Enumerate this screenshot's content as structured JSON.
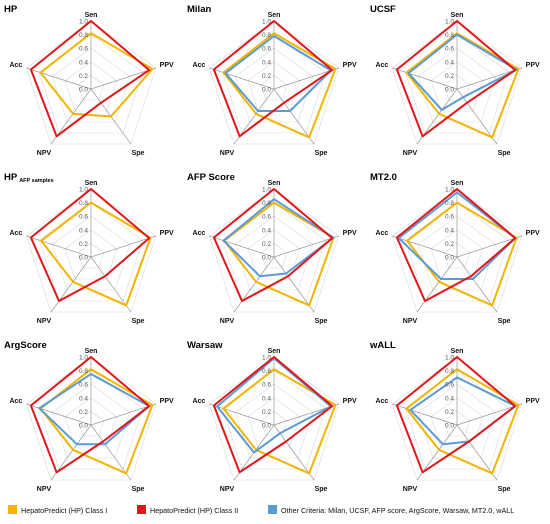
{
  "colors": {
    "class_i": "#F2B400",
    "class_ii": "#E0161B",
    "other": "#5B9BD5",
    "grid": "#d9d9d9",
    "spoke": "#999999"
  },
  "legend": [
    {
      "label": "HepatoPredict (HP) Class I",
      "color": "#F2B400"
    },
    {
      "label": "HepatoPredict (HP) Class II",
      "color": "#E0161B"
    },
    {
      "label": "Other Criteria: Milan, UCSF, AFP score, ArgScore, Warsaw, MT2.0, wALL",
      "color": "#5B9BD5"
    }
  ],
  "chart_data": [
    {
      "type": "radar",
      "title": "HP",
      "subtitle": "",
      "axes": [
        "Sen",
        "PPV",
        "Spe",
        "NPV",
        "Acc"
      ],
      "ticks": [
        "0.0",
        "0.2",
        "0.4",
        "0.6",
        "0.8",
        "1.0"
      ],
      "rlim": [
        0,
        1
      ],
      "series": [
        {
          "name": "HepatoPredict (HP) Class I",
          "values": [
            0.82,
            0.95,
            0.5,
            0.45,
            0.78
          ]
        },
        {
          "name": "HepatoPredict (HP) Class II",
          "values": [
            1.0,
            0.9,
            0.25,
            0.86,
            0.93
          ]
        }
      ]
    },
    {
      "type": "radar",
      "title": "Milan",
      "subtitle": "",
      "axes": [
        "Sen",
        "PPV",
        "Spe",
        "NPV",
        "Acc"
      ],
      "ticks": [
        "0.0",
        "0.2",
        "0.4",
        "0.6",
        "0.8",
        "1.0"
      ],
      "rlim": [
        0,
        1
      ],
      "series": [
        {
          "name": "HepatoPredict (HP) Class I",
          "values": [
            0.82,
            0.95,
            0.88,
            0.45,
            0.78
          ]
        },
        {
          "name": "HepatoPredict (HP) Class II",
          "values": [
            1.0,
            0.9,
            0.25,
            0.86,
            0.93
          ]
        },
        {
          "name": "Milan",
          "values": [
            0.78,
            0.88,
            0.4,
            0.4,
            0.75
          ]
        }
      ]
    },
    {
      "type": "radar",
      "title": "UCSF",
      "subtitle": "",
      "axes": [
        "Sen",
        "PPV",
        "Spe",
        "NPV",
        "Acc"
      ],
      "ticks": [
        "0.0",
        "0.2",
        "0.4",
        "0.6",
        "0.8",
        "1.0"
      ],
      "rlim": [
        0,
        1
      ],
      "series": [
        {
          "name": "HepatoPredict (HP) Class I",
          "values": [
            0.82,
            0.95,
            0.88,
            0.45,
            0.78
          ]
        },
        {
          "name": "HepatoPredict (HP) Class II",
          "values": [
            1.0,
            0.9,
            0.25,
            0.86,
            0.93
          ]
        },
        {
          "name": "UCSF",
          "values": [
            0.8,
            0.92,
            0.15,
            0.38,
            0.75
          ]
        }
      ]
    },
    {
      "type": "radar",
      "title": "HP",
      "subtitle": "AFP samples",
      "axes": [
        "Sen",
        "PPV",
        "Spe",
        "NPV",
        "Acc"
      ],
      "ticks": [
        "0.0",
        "0.2",
        "0.4",
        "0.6",
        "0.8",
        "1.0"
      ],
      "rlim": [
        0,
        1
      ],
      "series": [
        {
          "name": "HepatoPredict (HP) Class I",
          "values": [
            0.8,
            0.92,
            0.88,
            0.45,
            0.77
          ]
        },
        {
          "name": "HepatoPredict (HP) Class II",
          "values": [
            1.0,
            0.9,
            0.35,
            0.8,
            0.93
          ]
        }
      ]
    },
    {
      "type": "radar",
      "title": "AFP Score",
      "subtitle": "",
      "axes": [
        "Sen",
        "PPV",
        "Spe",
        "NPV",
        "Acc"
      ],
      "ticks": [
        "0.0",
        "0.2",
        "0.4",
        "0.6",
        "0.8",
        "1.0"
      ],
      "rlim": [
        0,
        1
      ],
      "series": [
        {
          "name": "HepatoPredict (HP) Class I",
          "values": [
            0.8,
            0.92,
            0.88,
            0.45,
            0.77
          ]
        },
        {
          "name": "HepatoPredict (HP) Class II",
          "values": [
            1.0,
            0.9,
            0.35,
            0.8,
            0.93
          ]
        },
        {
          "name": "AFP Score",
          "values": [
            0.85,
            0.92,
            0.3,
            0.35,
            0.78
          ]
        }
      ]
    },
    {
      "type": "radar",
      "title": "MT2.0",
      "subtitle": "",
      "axes": [
        "Sen",
        "PPV",
        "Spe",
        "NPV",
        "Acc"
      ],
      "ticks": [
        "0.0",
        "0.2",
        "0.4",
        "0.6",
        "0.8",
        "1.0"
      ],
      "rlim": [
        0,
        1
      ],
      "series": [
        {
          "name": "HepatoPredict (HP) Class I",
          "values": [
            0.8,
            0.92,
            0.88,
            0.45,
            0.77
          ]
        },
        {
          "name": "HepatoPredict (HP) Class II",
          "values": [
            1.0,
            0.9,
            0.35,
            0.8,
            0.93
          ]
        },
        {
          "name": "MT2.0",
          "values": [
            0.95,
            0.9,
            0.4,
            0.4,
            0.9
          ]
        }
      ]
    },
    {
      "type": "radar",
      "title": "ArgScore",
      "subtitle": "",
      "axes": [
        "Sen",
        "PPV",
        "Spe",
        "NPV",
        "Acc"
      ],
      "ticks": [
        "0.0",
        "0.2",
        "0.4",
        "0.6",
        "0.8",
        "1.0"
      ],
      "rlim": [
        0,
        1
      ],
      "series": [
        {
          "name": "HepatoPredict (HP) Class I",
          "values": [
            0.82,
            0.95,
            0.88,
            0.45,
            0.78
          ]
        },
        {
          "name": "HepatoPredict (HP) Class II",
          "values": [
            1.0,
            0.9,
            0.3,
            0.86,
            0.93
          ]
        },
        {
          "name": "ArgScore",
          "values": [
            0.75,
            0.9,
            0.35,
            0.35,
            0.8
          ]
        }
      ]
    },
    {
      "type": "radar",
      "title": "Warsaw",
      "subtitle": "",
      "axes": [
        "Sen",
        "PPV",
        "Spe",
        "NPV",
        "Acc"
      ],
      "ticks": [
        "0.0",
        "0.2",
        "0.4",
        "0.6",
        "0.8",
        "1.0"
      ],
      "rlim": [
        0,
        1
      ],
      "series": [
        {
          "name": "HepatoPredict (HP) Class I",
          "values": [
            0.82,
            0.95,
            0.88,
            0.45,
            0.78
          ]
        },
        {
          "name": "HepatoPredict (HP) Class II",
          "values": [
            1.0,
            0.9,
            0.3,
            0.86,
            0.93
          ]
        },
        {
          "name": "Warsaw",
          "values": [
            0.98,
            0.88,
            0.15,
            0.5,
            0.88
          ]
        }
      ]
    },
    {
      "type": "radar",
      "title": "wALL",
      "subtitle": "",
      "axes": [
        "Sen",
        "PPV",
        "Spe",
        "NPV",
        "Acc"
      ],
      "ticks": [
        "0.0",
        "0.2",
        "0.4",
        "0.6",
        "0.8",
        "1.0"
      ],
      "rlim": [
        0,
        1
      ],
      "series": [
        {
          "name": "HepatoPredict (HP) Class I",
          "values": [
            0.82,
            0.95,
            0.88,
            0.45,
            0.78
          ]
        },
        {
          "name": "HepatoPredict (HP) Class II",
          "values": [
            1.0,
            0.9,
            0.3,
            0.86,
            0.93
          ]
        },
        {
          "name": "wALL",
          "values": [
            0.7,
            0.9,
            0.3,
            0.35,
            0.72
          ]
        }
      ]
    }
  ]
}
